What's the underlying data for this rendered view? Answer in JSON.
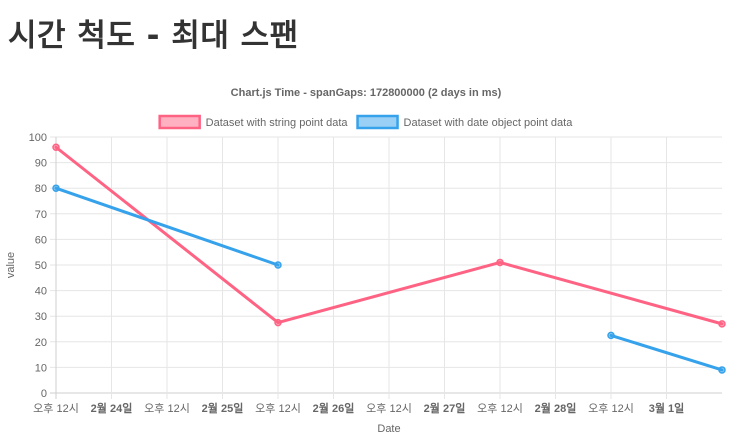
{
  "page": {
    "title": "시간 척도 - 최대 스팬"
  },
  "chart_data": {
    "type": "line",
    "title": "Chart.js Time - spanGaps: 172800000 (2 days in ms)",
    "xlabel": "Date",
    "ylabel": "value",
    "ylim": [
      0,
      100
    ],
    "y_ticks": [
      "0",
      "10",
      "20",
      "30",
      "40",
      "50",
      "60",
      "70",
      "80",
      "90",
      "100"
    ],
    "x_range_days": [
      0,
      6
    ],
    "x_ticks": [
      {
        "t": 0.0,
        "label": "오후 12시",
        "major": false
      },
      {
        "t": 0.5,
        "label": "2월 24일",
        "major": true
      },
      {
        "t": 1.0,
        "label": "오후 12시",
        "major": false
      },
      {
        "t": 1.5,
        "label": "2월 25일",
        "major": true
      },
      {
        "t": 2.0,
        "label": "오후 12시",
        "major": false
      },
      {
        "t": 2.5,
        "label": "2월 26일",
        "major": true
      },
      {
        "t": 3.0,
        "label": "오후 12시",
        "major": false
      },
      {
        "t": 3.5,
        "label": "2월 27일",
        "major": true
      },
      {
        "t": 4.0,
        "label": "오후 12시",
        "major": false
      },
      {
        "t": 4.5,
        "label": "2월 28일",
        "major": true
      },
      {
        "t": 5.0,
        "label": "오후 12시",
        "major": false
      },
      {
        "t": 5.5,
        "label": "3월 1일",
        "major": true
      }
    ],
    "grid": true,
    "legend_position": "top",
    "series": [
      {
        "name": "Dataset with string point data",
        "color": "#ff6384",
        "fill": "rgba(255,99,132,0.5)",
        "points": [
          {
            "t": 0.0,
            "y": 96
          },
          {
            "t": 2.0,
            "y": 27.5
          },
          {
            "t": 4.0,
            "y": 51
          },
          {
            "t": 6.0,
            "y": 27
          }
        ]
      },
      {
        "name": "Dataset with date object point data",
        "color": "#36a2eb",
        "fill": "rgba(54,162,235,0.5)",
        "points": [
          {
            "t": 0.0,
            "y": 80
          },
          {
            "t": 2.0,
            "y": 50
          },
          {
            "t": 5.0,
            "y": 22.5
          },
          {
            "t": 6.0,
            "y": 9
          }
        ]
      }
    ]
  }
}
